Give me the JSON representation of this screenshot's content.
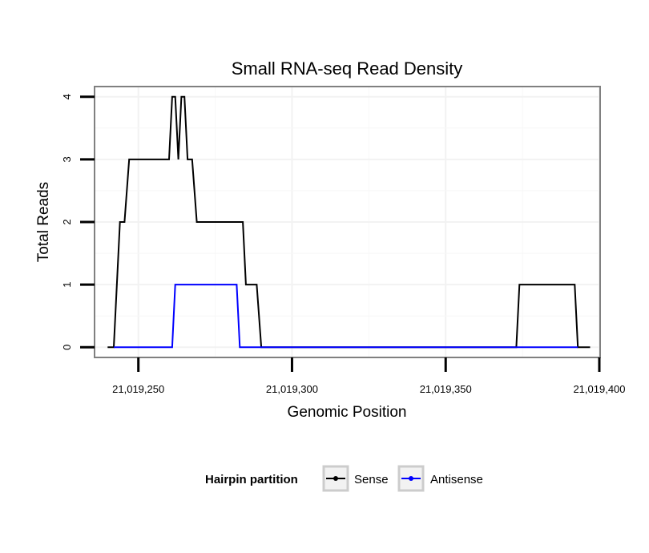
{
  "chart_data": {
    "type": "line",
    "title": "Small RNA-seq Read Density",
    "xlabel": "Genomic Position",
    "ylabel": "Total Reads",
    "xlim": [
      21019236,
      21019400
    ],
    "ylim": [
      -0.15,
      4.15
    ],
    "x_ticks": [
      21019250,
      21019300,
      21019350,
      21019400
    ],
    "x_tick_labels": [
      "21,019,250",
      "21,019,300",
      "21,019,350",
      "21,019,400"
    ],
    "y_ticks": [
      0,
      1,
      2,
      3,
      4
    ],
    "y_tick_labels": [
      "0",
      "1",
      "2",
      "3",
      "4"
    ],
    "grid": true,
    "legend": {
      "title": "Hairpin partition",
      "position": "bottom",
      "entries": [
        "Sense",
        "Antisense"
      ]
    },
    "series": [
      {
        "name": "Sense",
        "color": "#000000",
        "points": [
          [
            21019240,
            0
          ],
          [
            21019242,
            0
          ],
          [
            21019244,
            2
          ],
          [
            21019245.5,
            2
          ],
          [
            21019247,
            3
          ],
          [
            21019260,
            3
          ],
          [
            21019261,
            4
          ],
          [
            21019262,
            4
          ],
          [
            21019263,
            3
          ],
          [
            21019264,
            4
          ],
          [
            21019265,
            4
          ],
          [
            21019266,
            3
          ],
          [
            21019267.5,
            3
          ],
          [
            21019269,
            2
          ],
          [
            21019284,
            2
          ],
          [
            21019285,
            1
          ],
          [
            21019288.5,
            1
          ],
          [
            21019290,
            0
          ],
          [
            21019373,
            0
          ],
          [
            21019374,
            1
          ],
          [
            21019392,
            1
          ],
          [
            21019393,
            0
          ],
          [
            21019397,
            0
          ]
        ]
      },
      {
        "name": "Antisense",
        "color": "#0000ff",
        "points": [
          [
            21019242,
            0
          ],
          [
            21019261,
            0
          ],
          [
            21019262,
            1
          ],
          [
            21019282,
            1
          ],
          [
            21019283,
            0
          ],
          [
            21019290,
            0
          ],
          [
            21019373,
            0
          ],
          [
            21019374,
            0
          ],
          [
            21019392,
            0
          ],
          [
            21019393,
            0
          ]
        ]
      }
    ]
  }
}
